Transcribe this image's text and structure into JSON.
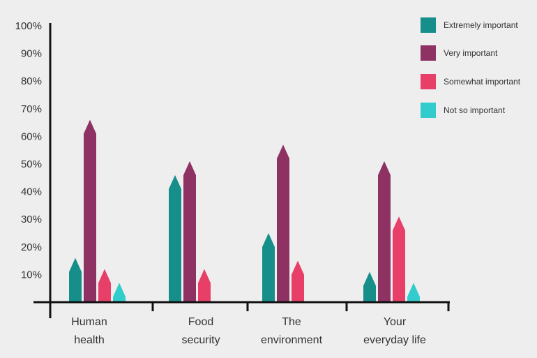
{
  "chart_data": {
    "type": "bar",
    "title": "",
    "xlabel": "",
    "ylabel": "",
    "ylim": [
      0,
      100
    ],
    "y_ticks": [
      "10%",
      "20%",
      "30%",
      "40%",
      "50%",
      "60%",
      "70%",
      "80%",
      "90%",
      "100%"
    ],
    "categories": [
      [
        "Human",
        "health"
      ],
      [
        "Food",
        "security"
      ],
      [
        "The",
        "environment"
      ],
      [
        "Your",
        "everyday life"
      ]
    ],
    "series": [
      {
        "name": "Extremely important",
        "color": "#168f8b",
        "values": [
          16,
          46,
          25,
          11
        ]
      },
      {
        "name": "Very important",
        "color": "#8e3163",
        "values": [
          66,
          51,
          57,
          51
        ]
      },
      {
        "name": "Somewhat important",
        "color": "#e83f68",
        "values": [
          12,
          12,
          15,
          31
        ]
      },
      {
        "name": "Not so important",
        "color": "#33cccc",
        "values": [
          7,
          0,
          0,
          7
        ]
      }
    ],
    "legend_position": "top-right",
    "grid": false
  }
}
